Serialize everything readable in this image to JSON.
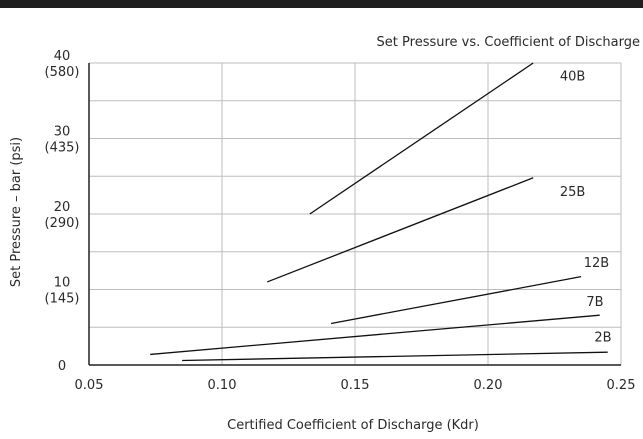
{
  "chart_data": {
    "type": "line",
    "title": "Set Pressure vs. Coefficient of Discharge",
    "xlabel": "Certified Coefficient of Discharge (Kdr)",
    "ylabel": "Set Pressure – bar (psi)",
    "xlim": [
      0.05,
      0.25
    ],
    "ylim": [
      0,
      40
    ],
    "grid": true,
    "x_ticks": [
      {
        "value": 0.05,
        "label": "0.05"
      },
      {
        "value": 0.1,
        "label": "0.10"
      },
      {
        "value": 0.15,
        "label": "0.15"
      },
      {
        "value": 0.2,
        "label": "0.20"
      },
      {
        "value": 0.25,
        "label": "0.25"
      }
    ],
    "y_ticks": [
      {
        "value": 0,
        "label": "0",
        "sub": ""
      },
      {
        "value": 10,
        "label": "10",
        "sub": "(145)"
      },
      {
        "value": 20,
        "label": "20",
        "sub": "(290)"
      },
      {
        "value": 30,
        "label": "30",
        "sub": "(435)"
      },
      {
        "value": 40,
        "label": "40",
        "sub": "(580)"
      }
    ],
    "y_grid": [
      0,
      5,
      10,
      15,
      20,
      25,
      30,
      35,
      40
    ],
    "series": [
      {
        "name": "40B",
        "x": [
          0.133,
          0.217
        ],
        "y": [
          20.0,
          40.0
        ],
        "label_x": 0.227,
        "label_y": 37.7
      },
      {
        "name": "25B",
        "x": [
          0.117,
          0.217
        ],
        "y": [
          11.0,
          24.8
        ],
        "label_x": 0.227,
        "label_y": 22.4
      },
      {
        "name": "12B",
        "x": [
          0.141,
          0.235
        ],
        "y": [
          5.5,
          11.7
        ],
        "label_x": 0.236,
        "label_y": 13.0
      },
      {
        "name": "7B",
        "x": [
          0.073,
          0.242
        ],
        "y": [
          1.4,
          6.6
        ],
        "label_x": 0.237,
        "label_y": 7.8
      },
      {
        "name": "2B",
        "x": [
          0.085,
          0.245
        ],
        "y": [
          0.6,
          1.7
        ],
        "label_x": 0.24,
        "label_y": 3.1
      }
    ]
  }
}
